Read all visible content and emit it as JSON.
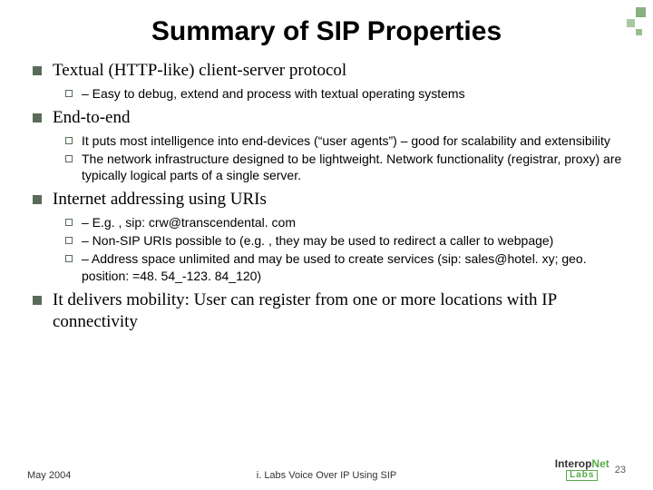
{
  "title": "Summary of SIP Properties",
  "items": [
    {
      "text": "Textual (HTTP-like) client-server protocol",
      "subs": [
        "– Easy to debug, extend and process with textual operating systems"
      ]
    },
    {
      "text": "End-to-end",
      "subs": [
        "It puts most intelligence into end-devices (“user agents”) – good for scalability and extensibility",
        "The network infrastructure designed to be lightweight.  Network functionality (registrar, proxy) are typically logical parts of a single server."
      ]
    },
    {
      "text": "Internet addressing using URIs",
      "subs": [
        "– E.g. , sip: crw@transcendental. com",
        "– Non-SIP URIs possible to (e.g. , they may be used to redirect a caller to webpage)",
        "– Address space unlimited and may be used to create services (sip: sales@hotel. xy; geo. position: =48. 54_-123. 84_120)"
      ]
    },
    {
      "text": "It delivers mobility: User can register from one or more locations with IP connectivity",
      "subs": []
    }
  ],
  "footer": {
    "left": "May 2004",
    "center": "i. Labs Voice Over IP Using SIP",
    "page": "23",
    "logo_main": "Interop",
    "logo_net": "Net",
    "logo_labs": "Labs"
  }
}
